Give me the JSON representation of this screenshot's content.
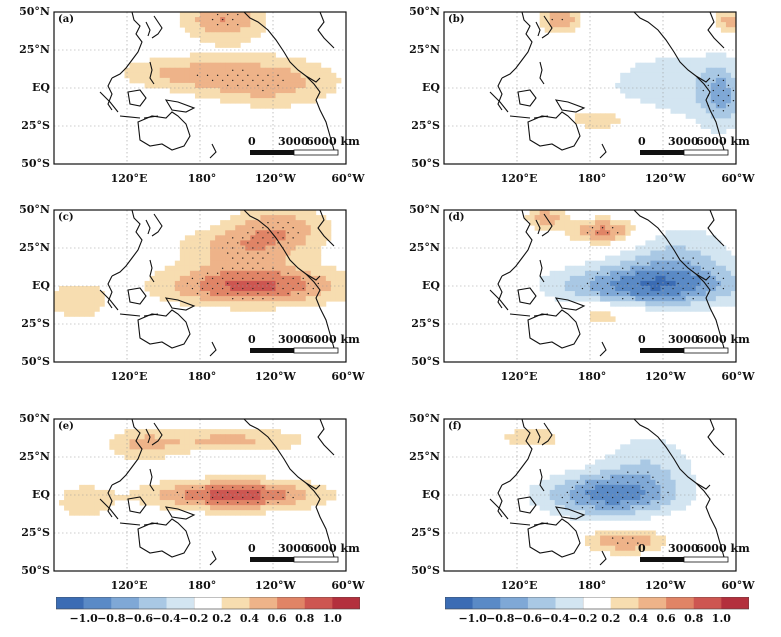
{
  "panels": [
    {
      "id": "a",
      "letter": "(a)",
      "pattern": "warm_east"
    },
    {
      "id": "b",
      "letter": "(b)",
      "pattern": "cool_east"
    },
    {
      "id": "c",
      "letter": "(c)",
      "pattern": "warm_strong"
    },
    {
      "id": "d",
      "letter": "(d)",
      "pattern": "cool_strong"
    },
    {
      "id": "e",
      "letter": "(e)",
      "pattern": "warm_central"
    },
    {
      "id": "f",
      "letter": "(f)",
      "pattern": "cool_central"
    }
  ],
  "lat_labels": [
    "50°N",
    "25°N",
    "EQ",
    "25°S",
    "50°S"
  ],
  "lon_labels": [
    "120°E",
    "180°",
    "120°W",
    "60°W"
  ],
  "scale_bar": {
    "zero": "0",
    "mid": "3000",
    "end": "6000 km"
  },
  "colorbar": {
    "ticks": [
      "−1.0",
      "−0.8",
      "−0.6",
      "−0.4",
      "−0.2",
      "0.2",
      "0.4",
      "0.6",
      "0.8",
      "1.0"
    ],
    "colors": [
      "#3b6cb4",
      "#5a8ac6",
      "#7fa8d6",
      "#a9c8e4",
      "#d3e5f1",
      "#ffffff",
      "#f7ddb0",
      "#eeb389",
      "#e08466",
      "#cd5651",
      "#b3303d"
    ]
  }
}
